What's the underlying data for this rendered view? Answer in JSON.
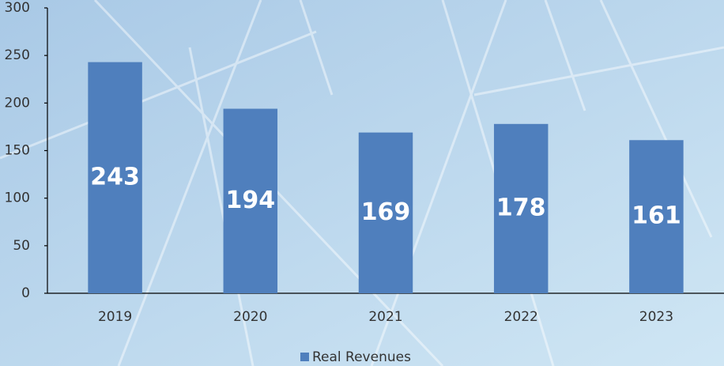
{
  "chart_data": {
    "type": "bar",
    "categories": [
      "2019",
      "2020",
      "2021",
      "2022",
      "2023"
    ],
    "series": [
      {
        "name": "Real Revenues",
        "color": "#4f7fbd",
        "values": [
          243,
          194,
          169,
          178,
          161
        ]
      }
    ],
    "ylim": [
      0,
      300
    ],
    "yticks": [
      0,
      50,
      100,
      150,
      200,
      250,
      300
    ],
    "legend": "bottom"
  }
}
